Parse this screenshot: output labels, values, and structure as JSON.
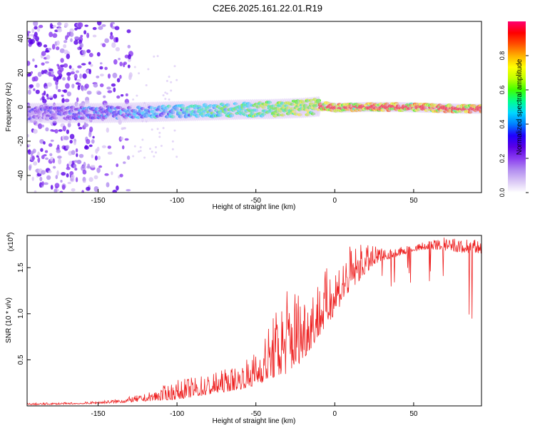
{
  "title": "C2E6.2025.161.22.01.R19",
  "chart_data": [
    {
      "type": "heatmap",
      "xlabel": "Height of straight line (km)",
      "ylabel": "Frequency (Hz)",
      "xlim": [
        -195,
        93
      ],
      "ylim": [
        -50,
        50
      ],
      "xticks": [
        -150,
        -100,
        -50,
        0,
        50
      ],
      "yticks": [
        -40,
        -20,
        0,
        20,
        40
      ],
      "colorbar": {
        "label": "Normalized spectral amplitude",
        "range": [
          0,
          1
        ],
        "ticks": [
          "0.0",
          "0.2",
          "0.4",
          "0.6",
          "0.8"
        ],
        "tick_values": [
          0.0,
          0.2,
          0.4,
          0.6,
          0.8
        ],
        "colors": [
          "#ffffff",
          "#d9c6f5",
          "#b28cf0",
          "#8a3bf0",
          "#5a00e6",
          "#2000ff",
          "#0080ff",
          "#00d8ff",
          "#00ff90",
          "#40ff00",
          "#c0ff00",
          "#ffff00",
          "#ffb000",
          "#ff5000",
          "#ff0000",
          "#ff0070"
        ]
      },
      "ridge": [
        {
          "x": -190,
          "y": -3.5
        },
        {
          "x": -150,
          "y": -3.5
        },
        {
          "x": -120,
          "y": -3
        },
        {
          "x": -100,
          "y": -2.5
        },
        {
          "x": -80,
          "y": -2
        },
        {
          "x": -60,
          "y": -1.5
        },
        {
          "x": -40,
          "y": -1.2
        },
        {
          "x": -20,
          "y": -0.5
        },
        {
          "x": -10,
          "y": 0.3
        },
        {
          "x": -5,
          "y": 0.5
        },
        {
          "x": 0,
          "y": -0.5
        },
        {
          "x": 20,
          "y": 0
        },
        {
          "x": 40,
          "y": 0
        },
        {
          "x": 60,
          "y": -0.5
        },
        {
          "x": 80,
          "y": -1
        },
        {
          "x": 93,
          "y": -1
        }
      ]
    },
    {
      "type": "line",
      "xlabel": "Height of straight line (km)",
      "ylabel": "SNR (10 * v/v)",
      "multiplier": "(x10",
      "multiplier_exp": "4",
      "multiplier_close": ")",
      "xlim": [
        -195,
        93
      ],
      "ylim": [
        0,
        1.85
      ],
      "xticks": [
        -150,
        -100,
        -50,
        0,
        50
      ],
      "yticks": [
        0.5,
        1.0,
        1.5
      ],
      "ytick_labels": [
        "0.5",
        "1.0",
        "1.5"
      ],
      "color": "#ee2222",
      "envelope": [
        {
          "x": -195,
          "base": 0.01,
          "peak": 0.03
        },
        {
          "x": -160,
          "base": 0.02,
          "peak": 0.04
        },
        {
          "x": -140,
          "base": 0.03,
          "peak": 0.07
        },
        {
          "x": -120,
          "base": 0.05,
          "peak": 0.13
        },
        {
          "x": -100,
          "base": 0.07,
          "peak": 0.28
        },
        {
          "x": -80,
          "base": 0.12,
          "peak": 0.35
        },
        {
          "x": -60,
          "base": 0.18,
          "peak": 0.45
        },
        {
          "x": -50,
          "base": 0.22,
          "peak": 0.6
        },
        {
          "x": -40,
          "base": 0.3,
          "peak": 0.95
        },
        {
          "x": -30,
          "base": 0.35,
          "peak": 1.35
        },
        {
          "x": -20,
          "base": 0.5,
          "peak": 1.3
        },
        {
          "x": -10,
          "base": 0.75,
          "peak": 1.4
        },
        {
          "x": 0,
          "base": 1.0,
          "peak": 1.6
        },
        {
          "x": 10,
          "base": 1.25,
          "peak": 1.75
        },
        {
          "x": 20,
          "base": 1.45,
          "peak": 1.75
        },
        {
          "x": 30,
          "base": 1.58,
          "peak": 1.72
        },
        {
          "x": 40,
          "base": 1.62,
          "peak": 1.72
        },
        {
          "x": 50,
          "base": 1.68,
          "peak": 1.75
        },
        {
          "x": 60,
          "base": 1.7,
          "peak": 1.8
        },
        {
          "x": 70,
          "base": 1.68,
          "peak": 1.83
        },
        {
          "x": 80,
          "base": 1.66,
          "peak": 1.82
        },
        {
          "x": 93,
          "base": 1.65,
          "peak": 1.8
        }
      ]
    }
  ]
}
